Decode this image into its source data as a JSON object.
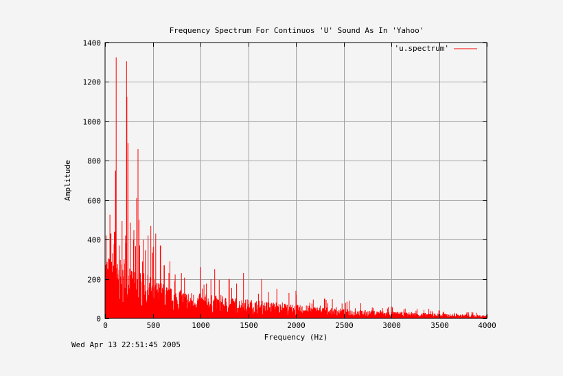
{
  "chart_data": {
    "type": "bar",
    "title": "Frequency Spectrum For Continuos 'U' Sound As In 'Yahoo'",
    "xlabel": "Frequency (Hz)",
    "ylabel": "Amplitude",
    "xlim": [
      0,
      4000
    ],
    "ylim": [
      0,
      1400
    ],
    "xticks": [
      0,
      500,
      1000,
      1500,
      2000,
      2500,
      3000,
      3500,
      4000
    ],
    "yticks": [
      0,
      200,
      400,
      600,
      800,
      1000,
      1200,
      1400
    ],
    "grid": true,
    "legend": {
      "position": "top-right",
      "entries": [
        {
          "label": "'u.spectrum'",
          "color": "#ff0000"
        }
      ]
    },
    "series": [
      {
        "name": "'u.spectrum'",
        "color": "#ff0000",
        "peaks": [
          {
            "x": 10,
            "y": 420
          },
          {
            "x": 30,
            "y": 250
          },
          {
            "x": 60,
            "y": 430
          },
          {
            "x": 80,
            "y": 330
          },
          {
            "x": 100,
            "y": 440
          },
          {
            "x": 110,
            "y": 750
          },
          {
            "x": 115,
            "y": 1325
          },
          {
            "x": 150,
            "y": 370
          },
          {
            "x": 200,
            "y": 300
          },
          {
            "x": 215,
            "y": 420
          },
          {
            "x": 225,
            "y": 1305
          },
          {
            "x": 230,
            "y": 1125
          },
          {
            "x": 240,
            "y": 890
          },
          {
            "x": 300,
            "y": 400
          },
          {
            "x": 330,
            "y": 610
          },
          {
            "x": 345,
            "y": 860
          },
          {
            "x": 355,
            "y": 500
          },
          {
            "x": 400,
            "y": 400
          },
          {
            "x": 450,
            "y": 420
          },
          {
            "x": 480,
            "y": 470
          },
          {
            "x": 530,
            "y": 430
          },
          {
            "x": 580,
            "y": 370
          },
          {
            "x": 620,
            "y": 270
          },
          {
            "x": 680,
            "y": 290
          },
          {
            "x": 800,
            "y": 230
          },
          {
            "x": 1000,
            "y": 260
          },
          {
            "x": 1150,
            "y": 250
          },
          {
            "x": 1300,
            "y": 200
          },
          {
            "x": 1450,
            "y": 230
          },
          {
            "x": 1640,
            "y": 200
          },
          {
            "x": 1800,
            "y": 150
          },
          {
            "x": 2000,
            "y": 140
          },
          {
            "x": 2300,
            "y": 100
          },
          {
            "x": 2560,
            "y": 90
          },
          {
            "x": 3000,
            "y": 60
          },
          {
            "x": 3500,
            "y": 40
          },
          {
            "x": 4000,
            "y": 20
          }
        ],
        "envelope": [
          [
            0,
            250
          ],
          [
            100,
            200
          ],
          [
            200,
            220
          ],
          [
            300,
            180
          ],
          [
            500,
            150
          ],
          [
            700,
            110
          ],
          [
            1000,
            90
          ],
          [
            1500,
            70
          ],
          [
            2000,
            50
          ],
          [
            2500,
            35
          ],
          [
            3000,
            25
          ],
          [
            3500,
            18
          ],
          [
            4000,
            12
          ]
        ]
      }
    ]
  },
  "footer": {
    "timestamp": "Wed Apr 13 22:51:45 2005"
  }
}
